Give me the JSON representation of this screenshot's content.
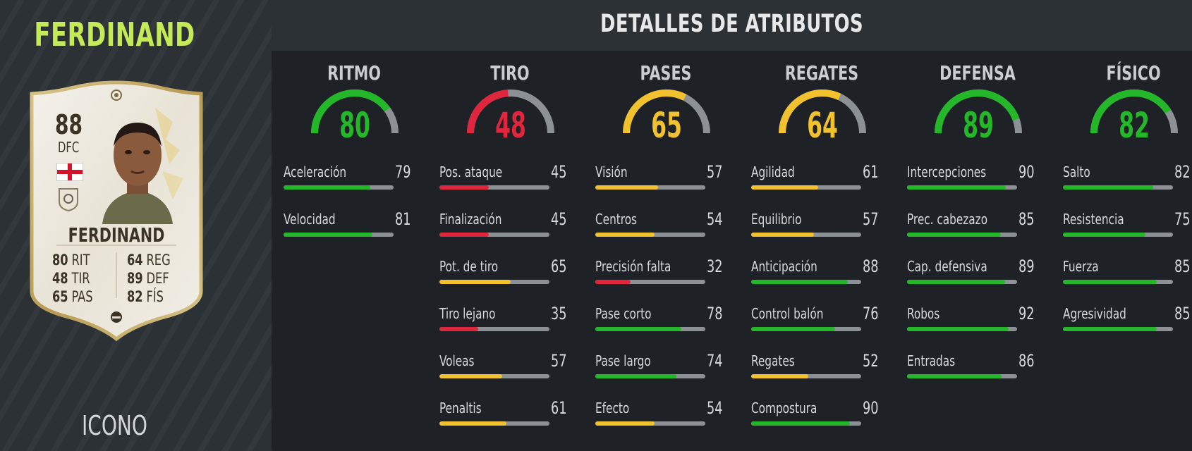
{
  "player": {
    "name": "FERDINAND",
    "card_type": "ICONO",
    "card": {
      "rating": "88",
      "position": "DFC",
      "name": "FERDINAND",
      "stats": [
        {
          "value": "80",
          "label": "RIT"
        },
        {
          "value": "48",
          "label": "TIR"
        },
        {
          "value": "65",
          "label": "PAS"
        },
        {
          "value": "64",
          "label": "REG"
        },
        {
          "value": "89",
          "label": "DEF"
        },
        {
          "value": "82",
          "label": "FÍS"
        }
      ]
    }
  },
  "header": {
    "title": "DETALLES DE ATRIBUTOS"
  },
  "colors": {
    "green": "#23b729",
    "yellow": "#f2c12e",
    "red": "#e0263d",
    "track": "#8c9196",
    "name_green": "#c5ea57"
  },
  "columns": [
    {
      "title": "RITMO",
      "value": 80,
      "attrs": [
        {
          "label": "Aceleración",
          "value": 79
        },
        {
          "label": "Velocidad",
          "value": 81
        }
      ]
    },
    {
      "title": "TIRO",
      "value": 48,
      "attrs": [
        {
          "label": "Pos. ataque",
          "value": 45
        },
        {
          "label": "Finalización",
          "value": 45
        },
        {
          "label": "Pot. de tiro",
          "value": 65
        },
        {
          "label": "Tiro lejano",
          "value": 35
        },
        {
          "label": "Voleas",
          "value": 57
        },
        {
          "label": "Penaltis",
          "value": 61
        }
      ]
    },
    {
      "title": "PASES",
      "value": 65,
      "attrs": [
        {
          "label": "Visión",
          "value": 57
        },
        {
          "label": "Centros",
          "value": 54
        },
        {
          "label": "Precisión falta",
          "value": 32
        },
        {
          "label": "Pase corto",
          "value": 78
        },
        {
          "label": "Pase largo",
          "value": 74
        },
        {
          "label": "Efecto",
          "value": 54
        }
      ]
    },
    {
      "title": "REGATES",
      "value": 64,
      "attrs": [
        {
          "label": "Agilidad",
          "value": 61
        },
        {
          "label": "Equilibrio",
          "value": 57
        },
        {
          "label": "Anticipación",
          "value": 88
        },
        {
          "label": "Control balón",
          "value": 76
        },
        {
          "label": "Regates",
          "value": 52
        },
        {
          "label": "Compostura",
          "value": 90
        }
      ]
    },
    {
      "title": "DEFENSA",
      "value": 89,
      "attrs": [
        {
          "label": "Intercepciones",
          "value": 90
        },
        {
          "label": "Prec. cabezazo",
          "value": 85
        },
        {
          "label": "Cap. defensiva",
          "value": 89
        },
        {
          "label": "Robos",
          "value": 92
        },
        {
          "label": "Entradas",
          "value": 86
        }
      ]
    },
    {
      "title": "FÍSICO",
      "value": 82,
      "attrs": [
        {
          "label": "Salto",
          "value": 82
        },
        {
          "label": "Resistencia",
          "value": 75
        },
        {
          "label": "Fuerza",
          "value": 85
        },
        {
          "label": "Agresividad",
          "value": 85
        }
      ]
    }
  ]
}
